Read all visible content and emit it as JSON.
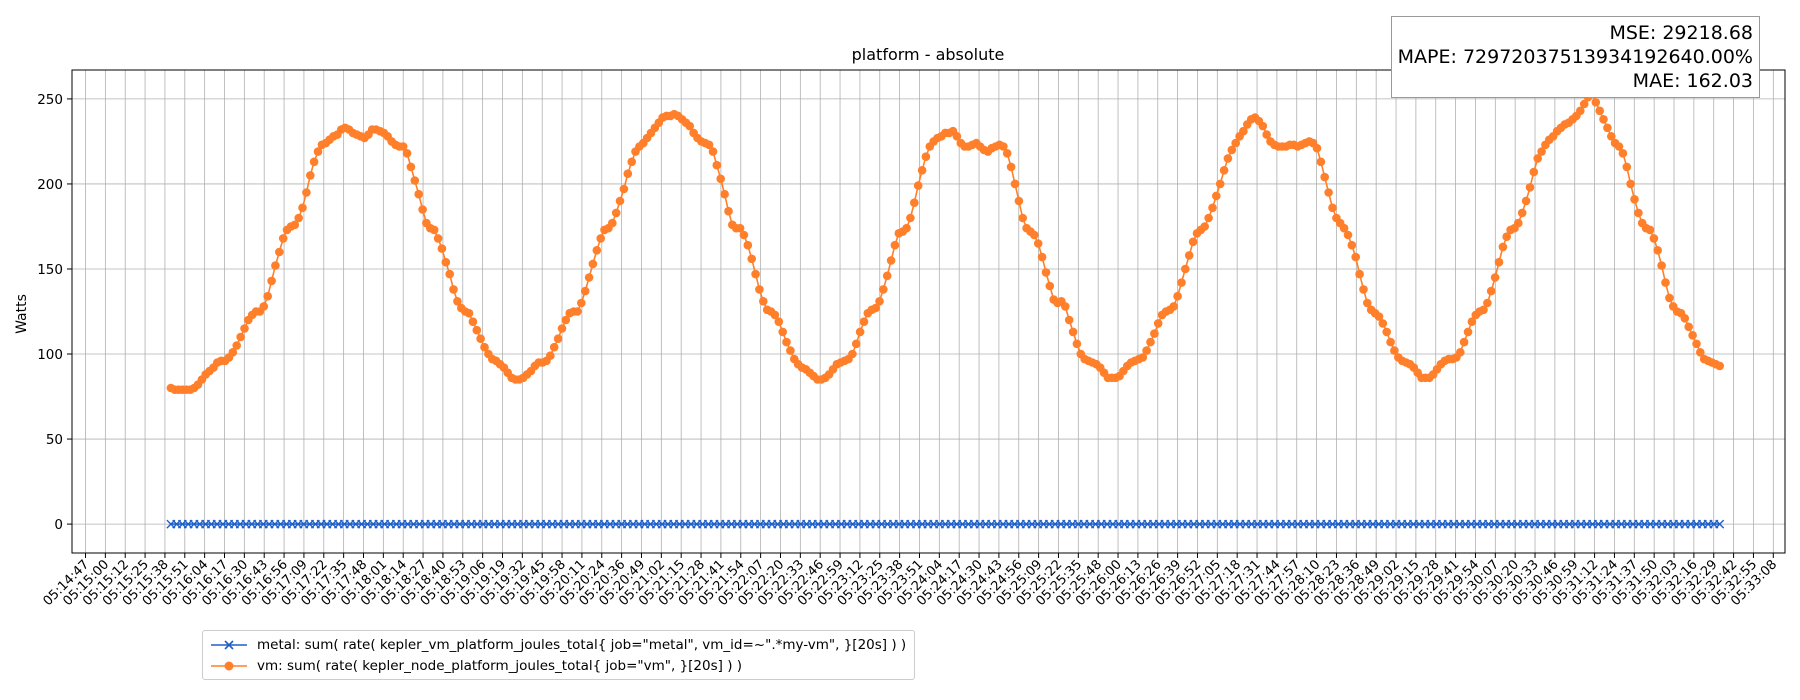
{
  "chart_data": {
    "type": "line",
    "title": "platform - absolute",
    "xlabel": "",
    "ylabel": "Watts",
    "ylim": [
      -17,
      267
    ],
    "yticks": [
      0,
      50,
      100,
      150,
      200,
      250
    ],
    "grid": true,
    "legend_position": "bottom-left",
    "x_tick_labels": [
      "05:14:47",
      "05:15:00",
      "05:15:12",
      "05:15:25",
      "05:15:38",
      "05:15:51",
      "05:16:04",
      "05:16:17",
      "05:16:30",
      "05:16:43",
      "05:16:56",
      "05:17:09",
      "05:17:22",
      "05:17:35",
      "05:17:48",
      "05:18:01",
      "05:18:14",
      "05:18:27",
      "05:18:40",
      "05:18:53",
      "05:19:06",
      "05:19:19",
      "05:19:32",
      "05:19:45",
      "05:19:58",
      "05:20:11",
      "05:20:24",
      "05:20:36",
      "05:20:49",
      "05:21:02",
      "05:21:15",
      "05:21:28",
      "05:21:41",
      "05:21:54",
      "05:22:07",
      "05:22:20",
      "05:22:33",
      "05:22:46",
      "05:22:59",
      "05:23:12",
      "05:23:25",
      "05:23:38",
      "05:23:51",
      "05:24:04",
      "05:24:17",
      "05:24:30",
      "05:24:43",
      "05:24:56",
      "05:25:09",
      "05:25:22",
      "05:25:35",
      "05:25:48",
      "05:26:00",
      "05:26:13",
      "05:26:26",
      "05:26:39",
      "05:26:52",
      "05:27:05",
      "05:27:18",
      "05:27:31",
      "05:27:44",
      "05:27:57",
      "05:28:10",
      "05:28:23",
      "05:28:36",
      "05:28:49",
      "05:29:02",
      "05:29:15",
      "05:29:28",
      "05:29:41",
      "05:29:54",
      "05:30:07",
      "05:30:20",
      "05:30:33",
      "05:30:46",
      "05:30:59",
      "05:31:12",
      "05:31:24",
      "05:31:37",
      "05:31:50",
      "05:32:03",
      "05:32:16",
      "05:32:29",
      "05:32:42",
      "05:32:55",
      "05:33:08"
    ],
    "series": [
      {
        "name": "metal: sum( rate( kepler_vm_platform_joules_total{ job=\"metal\", vm_id=~\".*my-vm\", }[20s] ) )",
        "color": "#1f5fc8",
        "marker": "x",
        "x_start_tick": 4.3,
        "x_end_tick": 82.3,
        "values": [
          0,
          0,
          0,
          0,
          0,
          0,
          0,
          0,
          0,
          0,
          0,
          0,
          0,
          0,
          0,
          0,
          0,
          0,
          0,
          0,
          0,
          0,
          0,
          0,
          0,
          0,
          0,
          0,
          0,
          0,
          0,
          0,
          0,
          0,
          0,
          0,
          0,
          0,
          0,
          0,
          0,
          0,
          0,
          0,
          0,
          0,
          0,
          0,
          0,
          0,
          0,
          0,
          0,
          0,
          0,
          0,
          0,
          0,
          0,
          0,
          0,
          0,
          0,
          0,
          0,
          0,
          0,
          0,
          0,
          0,
          0,
          0,
          0,
          0,
          0,
          0,
          0,
          0,
          0,
          0,
          0,
          0,
          0,
          0,
          0,
          0,
          0,
          0,
          0,
          0,
          0,
          0,
          0,
          0,
          0,
          0,
          0,
          0,
          0,
          0,
          0,
          0,
          0,
          0,
          0,
          0,
          0,
          0,
          0,
          0,
          0,
          0,
          0,
          0,
          0,
          0,
          0,
          0,
          0,
          0,
          0,
          0,
          0,
          0,
          0,
          0,
          0,
          0,
          0,
          0,
          0,
          0,
          0,
          0,
          0,
          0,
          0,
          0,
          0,
          0,
          0,
          0,
          0,
          0,
          0,
          0,
          0,
          0,
          0,
          0,
          0,
          0,
          0,
          0,
          0,
          0,
          0,
          0,
          0,
          0,
          0,
          0,
          0,
          0,
          0,
          0,
          0,
          0,
          0,
          0,
          0,
          0,
          0,
          0,
          0,
          0,
          0,
          0,
          0,
          0,
          0,
          0,
          0,
          0,
          0,
          0,
          0,
          0,
          0,
          0,
          0,
          0,
          0,
          0,
          0,
          0,
          0,
          0,
          0,
          0,
          0,
          0,
          0,
          0,
          0,
          0,
          0,
          0,
          0,
          0,
          0,
          0,
          0,
          0,
          0,
          0,
          0,
          0,
          0,
          0,
          0,
          0,
          0,
          0,
          0,
          0,
          0,
          0,
          0,
          0,
          0,
          0,
          0,
          0,
          0,
          0,
          0,
          0,
          0,
          0,
          0,
          0,
          0,
          0,
          0,
          0,
          0,
          0,
          0,
          0,
          0,
          0,
          0,
          0,
          0,
          0,
          0,
          0,
          0,
          0,
          0,
          0,
          0,
          0,
          0,
          0,
          0,
          0,
          0
        ]
      },
      {
        "name": "vm: sum( rate( kepler_node_platform_joules_total{ job=\"vm\", }[20s] ) )",
        "color": "#ff7f2a",
        "marker": "o",
        "x_start_tick": 4.3,
        "x_end_tick": 82.3,
        "values": [
          80,
          79,
          79,
          79,
          79,
          79,
          80,
          82,
          85,
          88,
          90,
          92,
          95,
          96,
          96,
          98,
          101,
          105,
          110,
          115,
          120,
          123,
          125,
          125,
          128,
          134,
          143,
          152,
          160,
          168,
          173,
          175,
          176,
          180,
          186,
          195,
          205,
          213,
          219,
          223,
          224,
          226,
          228,
          229,
          232,
          233,
          232,
          230,
          229,
          228,
          227,
          229,
          232,
          232,
          231,
          230,
          228,
          225,
          223,
          222,
          222,
          218,
          210,
          202,
          194,
          185,
          177,
          174,
          173,
          168,
          162,
          154,
          147,
          138,
          131,
          127,
          125,
          124,
          119,
          114,
          109,
          104,
          100,
          97,
          96,
          94,
          92,
          89,
          86,
          85,
          85,
          86,
          88,
          90,
          93,
          95,
          95,
          96,
          99,
          104,
          109,
          115,
          120,
          124,
          125,
          125,
          130,
          137,
          145,
          153,
          161,
          168,
          173,
          174,
          177,
          183,
          190,
          197,
          206,
          213,
          219,
          222,
          224,
          227,
          230,
          233,
          236,
          239,
          240,
          240,
          241,
          240,
          238,
          236,
          234,
          230,
          227,
          225,
          224,
          223,
          219,
          211,
          203,
          194,
          184,
          176,
          174,
          174,
          170,
          164,
          156,
          147,
          138,
          131,
          126,
          125,
          123,
          119,
          113,
          107,
          102,
          97,
          94,
          92,
          91,
          89,
          87,
          85,
          85,
          86,
          88,
          91,
          94,
          95,
          96,
          97,
          100,
          106,
          113,
          119,
          124,
          126,
          127,
          131,
          138,
          146,
          155,
          164,
          171,
          172,
          174,
          180,
          189,
          199,
          208,
          216,
          222,
          225,
          227,
          228,
          230,
          230,
          231,
          228,
          224,
          222,
          222,
          223,
          224,
          222,
          220,
          219,
          221,
          222,
          223,
          222,
          218,
          210,
          200,
          190,
          180,
          174,
          172,
          170,
          165,
          157,
          148,
          140,
          132,
          130,
          131,
          128,
          120,
          113,
          106,
          100,
          97,
          96,
          95,
          94,
          92,
          89,
          86,
          86,
          86,
          87,
          90,
          93,
          95,
          96,
          97,
          98,
          102,
          107,
          112,
          118,
          123,
          125,
          126,
          128,
          134,
          142,
          150,
          158,
          166,
          171,
          173,
          175,
          180,
          186,
          193,
          200,
          208,
          215,
          220,
          224,
          228,
          231,
          235,
          238,
          239,
          237,
          234,
          229,
          225,
          223,
          222,
          222,
          222,
          223,
          223,
          222,
          223,
          224,
          225,
          224,
          221,
          213,
          204,
          195,
          186,
          180,
          177,
          174,
          170,
          164,
          157,
          147,
          138,
          130,
          126,
          124,
          122,
          118,
          113,
          107,
          102,
          98,
          96,
          95,
          94,
          92,
          89,
          86,
          86,
          86,
          88,
          91,
          94,
          96,
          97,
          97,
          98,
          101,
          107,
          113,
          119,
          123,
          125,
          126,
          130,
          137,
          145,
          154,
          163,
          169,
          173,
          174,
          177,
          183,
          190,
          198,
          207,
          215,
          219,
          223,
          226,
          228,
          231,
          233,
          235,
          236,
          238,
          240,
          243,
          247,
          251,
          253,
          248,
          243,
          238,
          233,
          228,
          224,
          222,
          218,
          210,
          200,
          191,
          183,
          177,
          174,
          173,
          168,
          161,
          152,
          142,
          133,
          128,
          125,
          124,
          121,
          116,
          111,
          106,
          101,
          97,
          96,
          95,
          94,
          93
        ]
      }
    ]
  },
  "metrics_box": {
    "mse": "MSE: 29218.68",
    "mape": "MAPE: 7297203751393419264​0.00%",
    "mae": "MAE: 162.03"
  }
}
